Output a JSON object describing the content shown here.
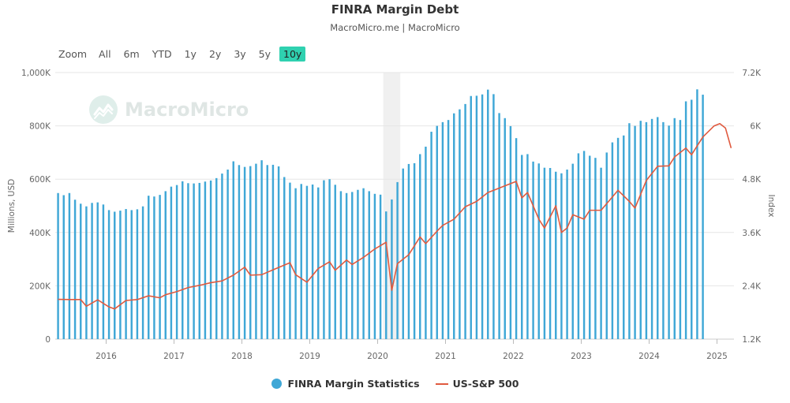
{
  "header": {
    "title": "FINRA Margin Debt",
    "subtitle": "MacroMicro.me | MacroMicro"
  },
  "range_selector": {
    "label": "Zoom",
    "buttons": [
      "All",
      "6m",
      "YTD",
      "1y",
      "2y",
      "3y",
      "5y",
      "10y"
    ],
    "active": "10y"
  },
  "watermark": "MacroMicro",
  "colors": {
    "bars": "#3fa7d6",
    "line": "#e05a3f",
    "grid": "#e6e6e6",
    "recession_band": "#f0f0f0",
    "active_button": "#2fd1b0"
  },
  "chart_data": {
    "type": "bar",
    "x_start": "2015-04",
    "x_end": "2025-03",
    "x_ticks": [
      "2016",
      "2017",
      "2018",
      "2019",
      "2020",
      "2021",
      "2022",
      "2023",
      "2024",
      "2025"
    ],
    "shaded_periods": [
      {
        "from": "2020-02",
        "to": "2020-04"
      }
    ],
    "y_left": {
      "label": "Millions, USD",
      "min": 0,
      "max": 1000000,
      "ticks": [
        "0",
        "200K",
        "400K",
        "600K",
        "800K",
        "1,000K"
      ]
    },
    "y_right": {
      "label": "Index",
      "min": 1200,
      "max": 7200,
      "ticks": [
        "1.2K",
        "2.4K",
        "3.6K",
        "4.8K",
        "6K",
        "7.2K"
      ]
    },
    "series": [
      {
        "name": "FINRA Margin Statistics",
        "type": "bar",
        "axis": "left",
        "start": "2015-04",
        "values": [
          548000,
          540000,
          548000,
          523000,
          508000,
          498000,
          511000,
          513000,
          505000,
          484000,
          478000,
          482000,
          488000,
          484000,
          487000,
          498000,
          538000,
          535000,
          541000,
          555000,
          572000,
          578000,
          592000,
          585000,
          584000,
          586000,
          591000,
          595000,
          604000,
          621000,
          636000,
          667000,
          653000,
          646000,
          649000,
          658000,
          671000,
          653000,
          654000,
          648000,
          608000,
          587000,
          566000,
          582000,
          575000,
          580000,
          569000,
          596000,
          600000,
          579000,
          555000,
          548000,
          552000,
          560000,
          566000,
          555000,
          545000,
          542000,
          479000,
          524000,
          589000,
          640000,
          657000,
          660000,
          694000,
          722000,
          778000,
          800000,
          814000,
          822000,
          847000,
          862000,
          882000,
          912000,
          913000,
          918000,
          936000,
          919000,
          848000,
          829000,
          799000,
          754000,
          691000,
          694000,
          666000,
          659000,
          643000,
          642000,
          628000,
          622000,
          636000,
          658000,
          697000,
          706000,
          688000,
          680000,
          643000,
          700000,
          738000,
          755000,
          764000,
          810000,
          800000,
          819000,
          814000,
          826000,
          833000,
          814000,
          801000,
          829000,
          822000,
          892000,
          898000,
          937000,
          917000
        ]
      },
      {
        "name": "US-S&P 500",
        "type": "line",
        "axis": "right",
        "dates": [
          "2015-04",
          "2015-06",
          "2015-08",
          "2015-09",
          "2015-11",
          "2016-01",
          "2016-02",
          "2016-04",
          "2016-06",
          "2016-08",
          "2016-10",
          "2016-11",
          "2017-01",
          "2017-03",
          "2017-05",
          "2017-07",
          "2017-09",
          "2017-11",
          "2018-01",
          "2018-02",
          "2018-04",
          "2018-06",
          "2018-09",
          "2018-10",
          "2018-12",
          "2019-02",
          "2019-04",
          "2019-05",
          "2019-07",
          "2019-08",
          "2019-10",
          "2019-12",
          "2020-02",
          "2020-03",
          "2020-04",
          "2020-06",
          "2020-08",
          "2020-09",
          "2020-11",
          "2020-12",
          "2021-02",
          "2021-04",
          "2021-06",
          "2021-08",
          "2021-10",
          "2022-01",
          "2022-02",
          "2022-03",
          "2022-05",
          "2022-06",
          "2022-08",
          "2022-09",
          "2022-10",
          "2022-11",
          "2023-01",
          "2023-02",
          "2023-04",
          "2023-06",
          "2023-07",
          "2023-09",
          "2023-10",
          "2023-12",
          "2024-02",
          "2024-04",
          "2024-05",
          "2024-07",
          "2024-08",
          "2024-10",
          "2024-12",
          "2025-01",
          "2025-02",
          "2025-03"
        ],
        "values": [
          2095,
          2090,
          2090,
          1940,
          2085,
          1925,
          1880,
          2070,
          2090,
          2175,
          2130,
          2200,
          2270,
          2360,
          2410,
          2470,
          2510,
          2640,
          2820,
          2640,
          2650,
          2760,
          2920,
          2650,
          2480,
          2790,
          2940,
          2750,
          2980,
          2880,
          3040,
          3230,
          3380,
          2300,
          2900,
          3100,
          3500,
          3350,
          3630,
          3760,
          3900,
          4180,
          4300,
          4500,
          4600,
          4750,
          4380,
          4500,
          3900,
          3700,
          4200,
          3600,
          3700,
          4000,
          3900,
          4100,
          4100,
          4400,
          4550,
          4300,
          4150,
          4770,
          5090,
          5100,
          5300,
          5500,
          5350,
          5750,
          6000,
          6050,
          5950,
          5500
        ]
      }
    ]
  }
}
